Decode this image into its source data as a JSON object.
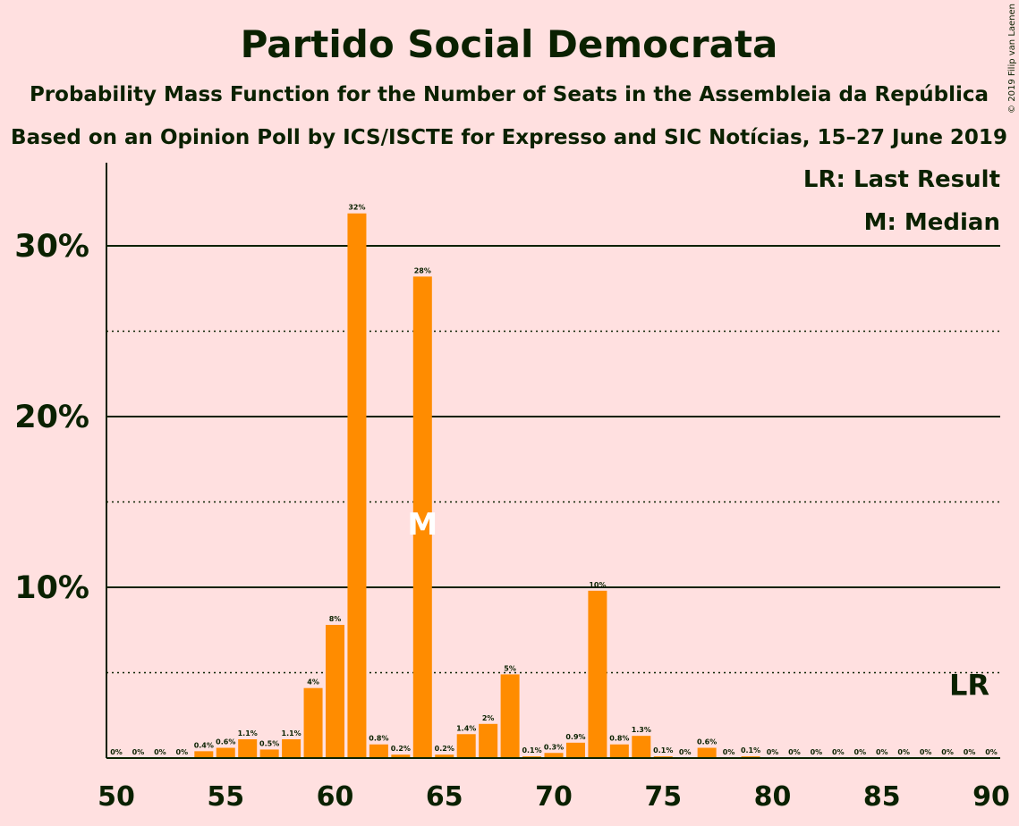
{
  "colors": {
    "background": "#FFE0E0",
    "bar": "#FF8C00",
    "text": "#0A2100",
    "median_mark": "#FFFFFF"
  },
  "chart_data": {
    "type": "bar",
    "title": "Partido Social Democrata",
    "subtitle": "Probability Mass Function for the Number of Seats in the Assembleia da República",
    "subtitle2": "Based on an Opinion Poll by ICS/ISCTE for Expresso and SIC Notícias, 15–27 June 2019",
    "copyright": "© 2019 Filip van Laenen",
    "legend": {
      "last_result": "LR: Last Result",
      "median": "M: Median",
      "placement": "top-right"
    },
    "ylim": [
      0,
      35
    ],
    "yticks": [
      {
        "value": 10,
        "label": "10%"
      },
      {
        "value": 20,
        "label": "20%"
      },
      {
        "value": 30,
        "label": "30%"
      }
    ],
    "minor_gridlines": [
      5,
      15,
      25
    ],
    "xlim": [
      50,
      90
    ],
    "xticks": [
      {
        "value": 50,
        "label": "50"
      },
      {
        "value": 55,
        "label": "55"
      },
      {
        "value": 60,
        "label": "60"
      },
      {
        "value": 65,
        "label": "65"
      },
      {
        "value": 70,
        "label": "70"
      },
      {
        "value": 75,
        "label": "75"
      },
      {
        "value": 80,
        "label": "80"
      },
      {
        "value": 85,
        "label": "85"
      },
      {
        "value": 90,
        "label": "90"
      }
    ],
    "median_seat": 64,
    "median_label": "M",
    "last_result_seat": 89,
    "last_result_label": "LR",
    "bars": [
      {
        "x": 50,
        "value": 0,
        "label": "0%"
      },
      {
        "x": 51,
        "value": 0,
        "label": "0%"
      },
      {
        "x": 52,
        "value": 0,
        "label": "0%"
      },
      {
        "x": 53,
        "value": 0,
        "label": "0%"
      },
      {
        "x": 54,
        "value": 0.4,
        "label": "0.4%"
      },
      {
        "x": 55,
        "value": 0.6,
        "label": "0.6%"
      },
      {
        "x": 56,
        "value": 1.1,
        "label": "1.1%"
      },
      {
        "x": 57,
        "value": 0.5,
        "label": "0.5%"
      },
      {
        "x": 58,
        "value": 1.1,
        "label": "1.1%"
      },
      {
        "x": 59,
        "value": 4.1,
        "label": "4%"
      },
      {
        "x": 60,
        "value": 7.8,
        "label": "8%"
      },
      {
        "x": 61,
        "value": 31.9,
        "label": "32%"
      },
      {
        "x": 62,
        "value": 0.8,
        "label": "0.8%"
      },
      {
        "x": 63,
        "value": 0.2,
        "label": "0.2%"
      },
      {
        "x": 64,
        "value": 28.2,
        "label": "28%"
      },
      {
        "x": 65,
        "value": 0.2,
        "label": "0.2%"
      },
      {
        "x": 66,
        "value": 1.4,
        "label": "1.4%"
      },
      {
        "x": 67,
        "value": 2.0,
        "label": "2%"
      },
      {
        "x": 68,
        "value": 4.9,
        "label": "5%"
      },
      {
        "x": 69,
        "value": 0.1,
        "label": "0.1%"
      },
      {
        "x": 70,
        "value": 0.3,
        "label": "0.3%"
      },
      {
        "x": 71,
        "value": 0.9,
        "label": "0.9%"
      },
      {
        "x": 72,
        "value": 9.8,
        "label": "10%"
      },
      {
        "x": 73,
        "value": 0.8,
        "label": "0.8%"
      },
      {
        "x": 74,
        "value": 1.3,
        "label": "1.3%"
      },
      {
        "x": 75,
        "value": 0.1,
        "label": "0.1%"
      },
      {
        "x": 76,
        "value": 0,
        "label": "0%"
      },
      {
        "x": 77,
        "value": 0.6,
        "label": "0.6%"
      },
      {
        "x": 78,
        "value": 0,
        "label": "0%"
      },
      {
        "x": 79,
        "value": 0.1,
        "label": "0.1%"
      },
      {
        "x": 80,
        "value": 0,
        "label": "0%"
      },
      {
        "x": 81,
        "value": 0,
        "label": "0%"
      },
      {
        "x": 82,
        "value": 0,
        "label": "0%"
      },
      {
        "x": 83,
        "value": 0,
        "label": "0%"
      },
      {
        "x": 84,
        "value": 0,
        "label": "0%"
      },
      {
        "x": 85,
        "value": 0,
        "label": "0%"
      },
      {
        "x": 86,
        "value": 0,
        "label": "0%"
      },
      {
        "x": 87,
        "value": 0,
        "label": "0%"
      },
      {
        "x": 88,
        "value": 0,
        "label": "0%"
      },
      {
        "x": 89,
        "value": 0,
        "label": "0%"
      },
      {
        "x": 90,
        "value": 0,
        "label": "0%"
      }
    ]
  }
}
